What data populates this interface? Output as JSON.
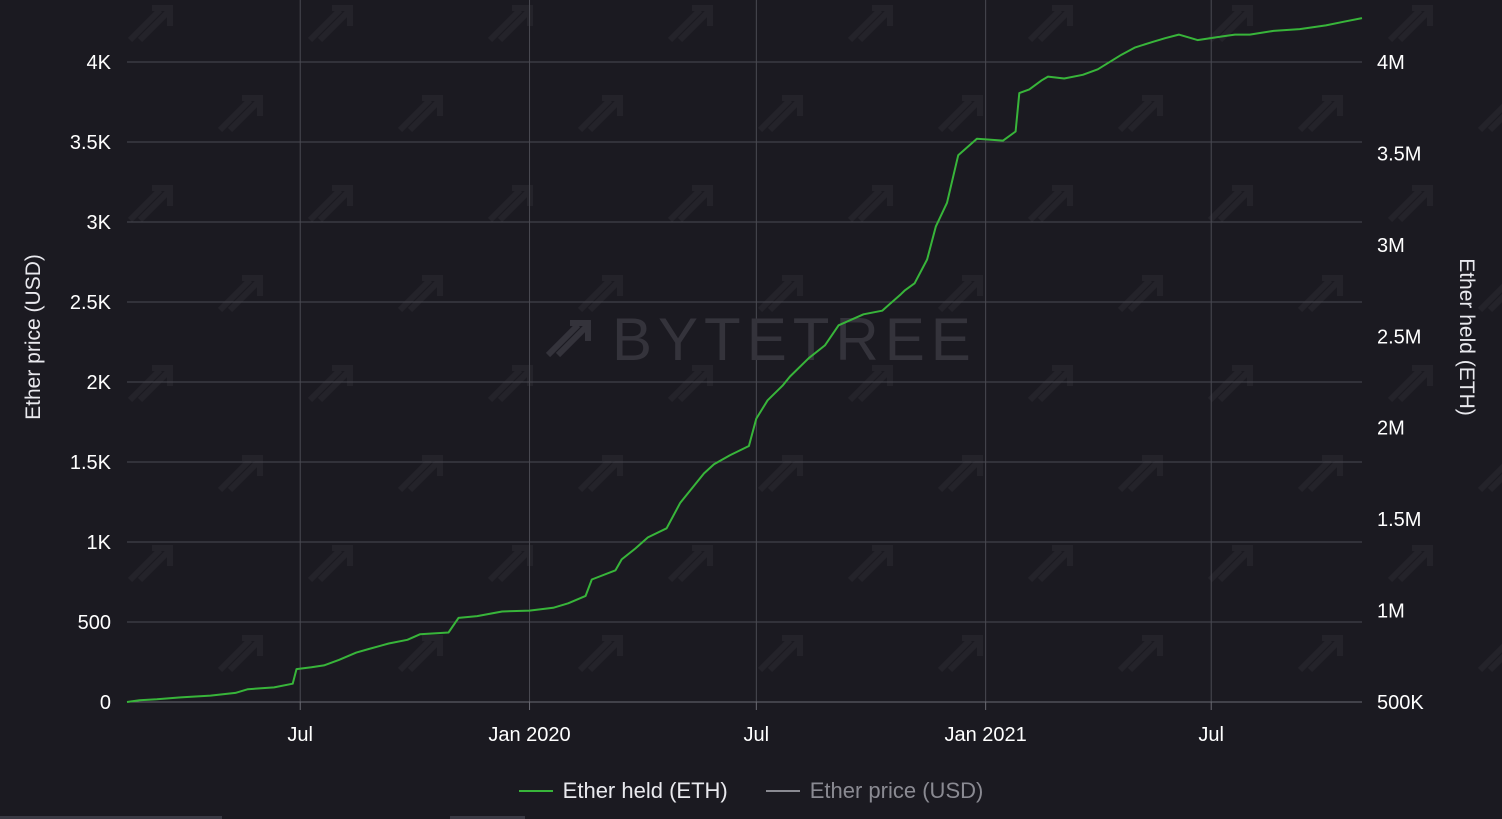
{
  "watermark": "BYTETREE",
  "colors": {
    "background": "#1b1a21",
    "eth_line": "#38b53a",
    "price_line": "#8a8a92",
    "grid": "#4a4a52"
  },
  "legend": [
    {
      "label": "Ether held (ETH)",
      "color": "#38b53a"
    },
    {
      "label": "Ether price (USD)",
      "color": "#8a8a92"
    }
  ],
  "chart_data": {
    "type": "line",
    "title": "",
    "ylabel_left": "Ether price (USD)",
    "ylabel_right": "Ether held (ETH)",
    "x_tick_labels": [
      "Jul",
      "Jan 2020",
      "Jul",
      "Jan 2021",
      "Jul"
    ],
    "x_tick_dates": [
      "2019-07-01",
      "2020-01-01",
      "2020-07-01",
      "2021-01-01",
      "2021-07-01"
    ],
    "xlim": [
      "2019-02-12",
      "2021-10-30"
    ],
    "y_left": {
      "ticks": [
        0,
        500,
        1000,
        1500,
        2000,
        2500,
        3000,
        3500,
        4000
      ],
      "tick_labels": [
        "0",
        "500",
        "1K",
        "1.5K",
        "2K",
        "2.5K",
        "3K",
        "3.5K",
        "4K"
      ],
      "range": [
        0,
        4000
      ]
    },
    "y_right": {
      "ticks": [
        500000,
        1000000,
        1500000,
        2000000,
        2500000,
        3000000,
        3500000,
        4000000
      ],
      "tick_labels": [
        "500K",
        "1M",
        "1.5M",
        "2M",
        "2.5M",
        "3M",
        "3.5M",
        "4M"
      ],
      "range": [
        500000,
        4000000
      ]
    },
    "grid": true,
    "legend_position": "bottom-center",
    "series": [
      {
        "name": "Ether held (ETH)",
        "axis": "right",
        "x": [
          "2019-02-12",
          "2019-02-22",
          "2019-03-08",
          "2019-03-27",
          "2019-04-20",
          "2019-05-10",
          "2019-05-20",
          "2019-06-10",
          "2019-06-25",
          "2019-06-28",
          "2019-07-10",
          "2019-07-20",
          "2019-08-01",
          "2019-08-15",
          "2019-08-25",
          "2019-09-10",
          "2019-09-25",
          "2019-10-05",
          "2019-10-28",
          "2019-11-05",
          "2019-11-20",
          "2019-12-10",
          "2020-01-01",
          "2020-01-20",
          "2020-02-01",
          "2020-02-15",
          "2020-02-20",
          "2020-03-10",
          "2020-03-15",
          "2020-03-26",
          "2020-04-05",
          "2020-04-20",
          "2020-05-01",
          "2020-05-20",
          "2020-05-28",
          "2020-06-10",
          "2020-06-25",
          "2020-07-01",
          "2020-07-10",
          "2020-07-22",
          "2020-07-28",
          "2020-08-12",
          "2020-08-25",
          "2020-09-05",
          "2020-09-25",
          "2020-10-10",
          "2020-10-25",
          "2020-10-28",
          "2020-11-05",
          "2020-11-15",
          "2020-11-22",
          "2020-12-01",
          "2020-12-10",
          "2020-12-25",
          "2021-01-15",
          "2021-01-25",
          "2021-01-28",
          "2021-02-05",
          "2021-02-15",
          "2021-02-20",
          "2021-03-05",
          "2021-03-20",
          "2021-04-01",
          "2021-04-20",
          "2021-05-01",
          "2021-05-15",
          "2021-05-25",
          "2021-06-05",
          "2021-06-15",
          "2021-06-20",
          "2021-07-10",
          "2021-07-20",
          "2021-08-01",
          "2021-08-20",
          "2021-09-10",
          "2021-10-01",
          "2021-10-15",
          "2021-10-30"
        ],
        "values": [
          500000,
          510000,
          515000,
          525000,
          535000,
          550000,
          570000,
          580000,
          600000,
          680000,
          690000,
          700000,
          730000,
          770000,
          790000,
          820000,
          840000,
          870000,
          880000,
          960000,
          970000,
          995000,
          1000000,
          1015000,
          1040000,
          1080000,
          1170000,
          1220000,
          1280000,
          1340000,
          1400000,
          1450000,
          1590000,
          1750000,
          1800000,
          1850000,
          1900000,
          2050000,
          2150000,
          2230000,
          2280000,
          2380000,
          2450000,
          2560000,
          2620000,
          2640000,
          2730000,
          2750000,
          2790000,
          2920000,
          3100000,
          3230000,
          3490000,
          3580000,
          3570000,
          3620000,
          3830000,
          3850000,
          3900000,
          3920000,
          3910000,
          3930000,
          3960000,
          4040000,
          4080000,
          4110000,
          4130000,
          4150000,
          4130000,
          4120000,
          4140000,
          4150000,
          4150000,
          4170000,
          4180000,
          4200000,
          4220000,
          4240000
        ]
      },
      {
        "name": "Ether price (USD)",
        "axis": "left",
        "x": [],
        "values": []
      }
    ]
  }
}
